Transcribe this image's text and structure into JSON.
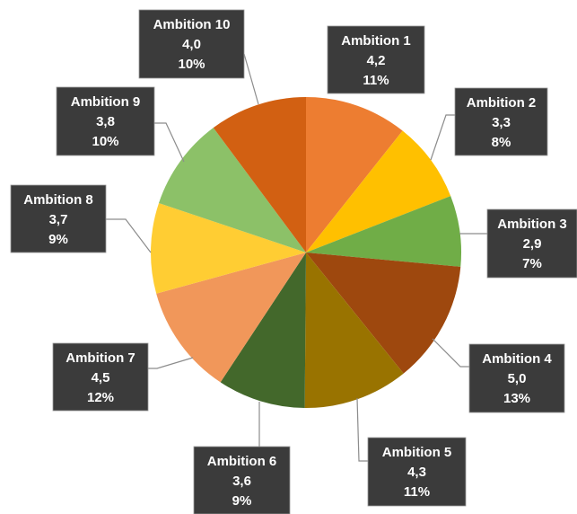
{
  "chart_data": {
    "type": "pie",
    "title": "",
    "start_angle_deg": 0,
    "direction": "clockwise",
    "slices": [
      {
        "label": "Ambition 1",
        "value": "4,2",
        "percent": "11%",
        "numeric": 4.2,
        "color": "#ED7D31"
      },
      {
        "label": "Ambition 2",
        "value": "3,3",
        "percent": "8%",
        "numeric": 3.3,
        "color": "#FFC000"
      },
      {
        "label": "Ambition 3",
        "value": "2,9",
        "percent": "7%",
        "numeric": 2.9,
        "color": "#70AD47"
      },
      {
        "label": "Ambition 4",
        "value": "5,0",
        "percent": "13%",
        "numeric": 5.0,
        "color": "#9E480E"
      },
      {
        "label": "Ambition 5",
        "value": "4,3",
        "percent": "11%",
        "numeric": 4.3,
        "color": "#997300"
      },
      {
        "label": "Ambition 6",
        "value": "3,6",
        "percent": "9%",
        "numeric": 3.6,
        "color": "#43682B"
      },
      {
        "label": "Ambition 7",
        "value": "4,5",
        "percent": "12%",
        "numeric": 4.5,
        "color": "#F1975A"
      },
      {
        "label": "Ambition 8",
        "value": "3,7",
        "percent": "9%",
        "numeric": 3.7,
        "color": "#FFCD33"
      },
      {
        "label": "Ambition 9",
        "value": "3,8",
        "percent": "10%",
        "numeric": 3.8,
        "color": "#8CC168"
      },
      {
        "label": "Ambition 10",
        "value": "4,0",
        "percent": "10%",
        "numeric": 4.0,
        "color": "#D26012"
      }
    ]
  }
}
